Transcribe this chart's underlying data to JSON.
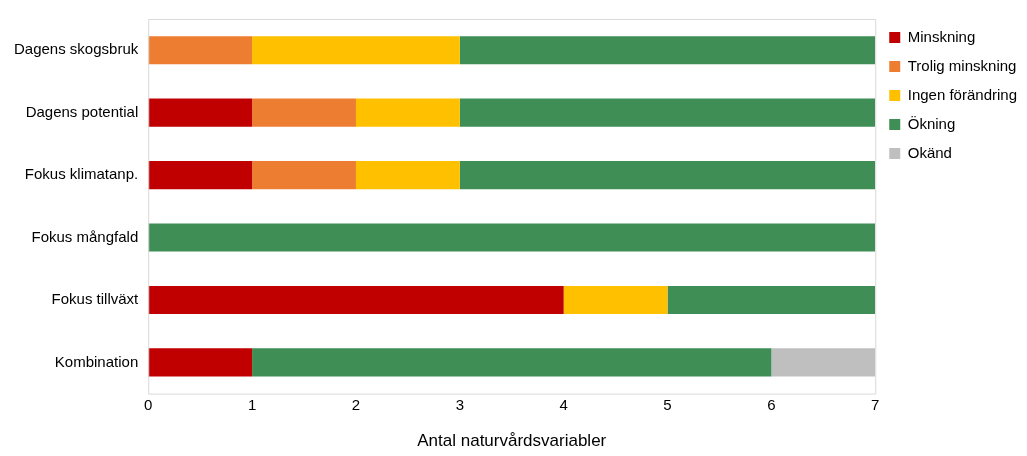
{
  "chart_data": {
    "type": "bar",
    "orientation": "horizontal",
    "stacked": true,
    "xlabel": "Antal naturvårdsvariabler",
    "categories": [
      "Dagens skogsbruk",
      "Dagens potential",
      "Fokus klimatanp.",
      "Fokus mångfald",
      "Fokus tillväxt",
      "Kombination"
    ],
    "series": [
      {
        "name": "Minskning",
        "color": "#c00000",
        "values": [
          0,
          1,
          1,
          0,
          4,
          1
        ]
      },
      {
        "name": "Trolig minskning",
        "color": "#ed7d31",
        "values": [
          1,
          1,
          1,
          0,
          0,
          0
        ]
      },
      {
        "name": "Ingen förändring",
        "color": "#ffc000",
        "values": [
          2,
          1,
          1,
          0,
          1,
          0
        ]
      },
      {
        "name": "Ökning",
        "color": "#3e8e56",
        "values": [
          4,
          4,
          4,
          7,
          2,
          5
        ]
      },
      {
        "name": "Okänd",
        "color": "#bfbfbf",
        "values": [
          0,
          0,
          0,
          0,
          0,
          1
        ]
      }
    ],
    "xlim": [
      0,
      7
    ],
    "xticks": [
      0,
      1,
      2,
      3,
      4,
      5,
      6,
      7
    ],
    "grid": false,
    "legend": "right"
  }
}
